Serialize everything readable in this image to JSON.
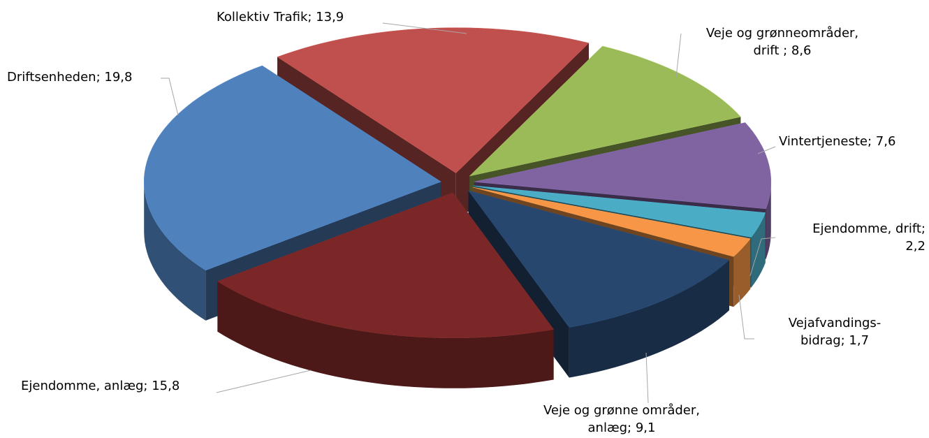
{
  "chart_data": {
    "type": "pie3d",
    "values": [
      13.9,
      8.6,
      7.6,
      2.2,
      1.7,
      9.1,
      15.8,
      19.8
    ],
    "value_labels": [
      [
        "Kollektiv Trafik; 13,9"
      ],
      [
        "Veje og grønneområder,",
        "drift ; 8,6"
      ],
      [
        "Vintertjeneste; 7,6"
      ],
      [
        "Ejendomme, drift;",
        "2,2"
      ],
      [
        "Vejafvandings-",
        "bidrag; 1,7"
      ],
      [
        "Veje og grønne områder,",
        "anlæg; 9,1"
      ],
      [
        "Ejendomme, anlæg; 15,8"
      ],
      [
        "Driftsenheden; 19,8"
      ]
    ],
    "colors": [
      "#c0504d",
      "#9bbb59",
      "#8064a2",
      "#4bacc6",
      "#f79646",
      "#27476f",
      "#7b2727",
      "#4f81bd"
    ]
  }
}
